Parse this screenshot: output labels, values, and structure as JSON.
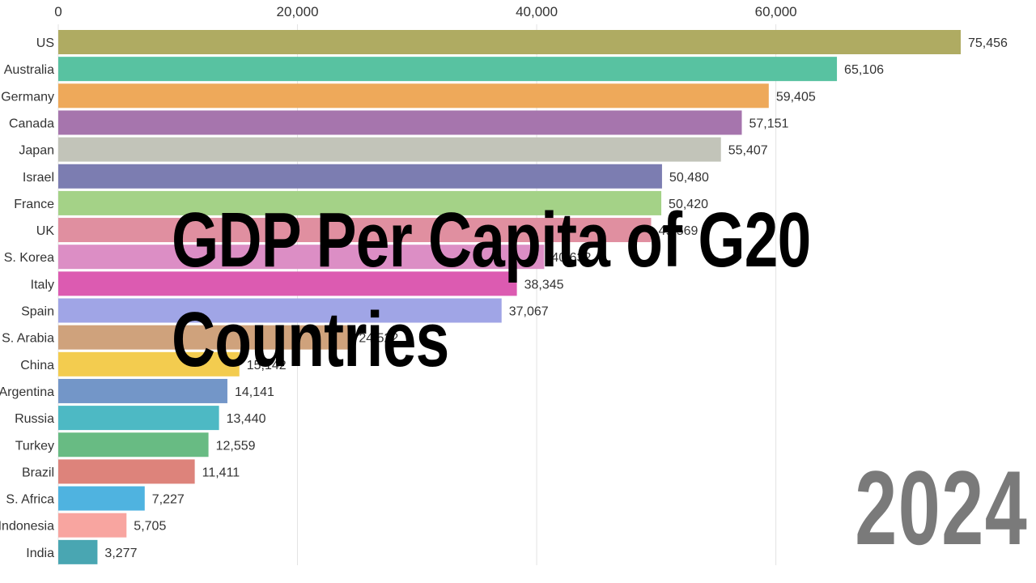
{
  "title_line1": "GDP Per Capita of G20",
  "title_line2": "Countries",
  "year": "2024",
  "chart_data": {
    "type": "bar",
    "orientation": "horizontal",
    "xticks": [
      0,
      20000,
      40000,
      60000
    ],
    "xtick_labels": [
      "0",
      "20,000",
      "40,000",
      "60,000"
    ],
    "xlim": [
      0,
      75456
    ],
    "grid": true,
    "categories": [
      "US",
      "Australia",
      "Germany",
      "Canada",
      "Japan",
      "Israel",
      "France",
      "UK",
      "S. Korea",
      "Italy",
      "Spain",
      "S. Arabia",
      "China",
      "Argentina",
      "Russia",
      "Turkey",
      "Brazil",
      "S. Africa",
      "Indonesia",
      "India"
    ],
    "values": [
      75456,
      65106,
      59405,
      57151,
      55407,
      50480,
      50420,
      49569,
      40632,
      38345,
      37067,
      24522,
      15142,
      14141,
      13440,
      12559,
      11411,
      7227,
      5705,
      3277
    ],
    "value_labels": [
      "75,456",
      "65,106",
      "59,405",
      "57,151",
      "55,407",
      "50,480",
      "50,420",
      "49,569",
      "40,632",
      "38,345",
      "37,067",
      "24,522",
      "15,142",
      "14,141",
      "13,440",
      "12,559",
      "11,411",
      "7,227",
      "5,705",
      "3,277"
    ],
    "colors": [
      "#afab62",
      "#58c2a1",
      "#eea95a",
      "#a675ad",
      "#c2c4b9",
      "#7c7db1",
      "#a4d287",
      "#e08fa0",
      "#dc8ec5",
      "#dc5bb1",
      "#a0a5e6",
      "#cfa27c",
      "#f3cc4f",
      "#7396c8",
      "#4db9c4",
      "#68bb83",
      "#dd837b",
      "#4fb3e0",
      "#f8a5a0",
      "#49a6b2"
    ]
  }
}
